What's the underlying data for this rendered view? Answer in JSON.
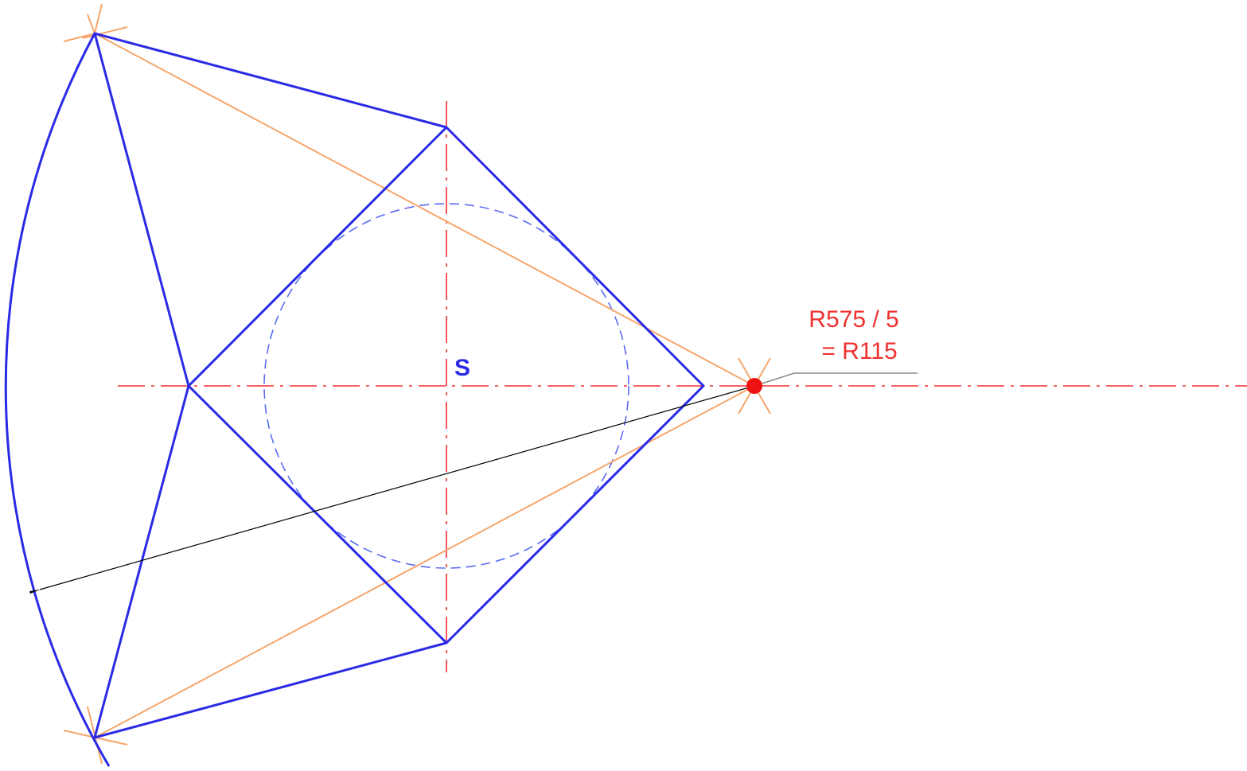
{
  "labels": {
    "center": "S",
    "radius_formula": "R575 / 5",
    "radius_result": "= R115"
  }
}
